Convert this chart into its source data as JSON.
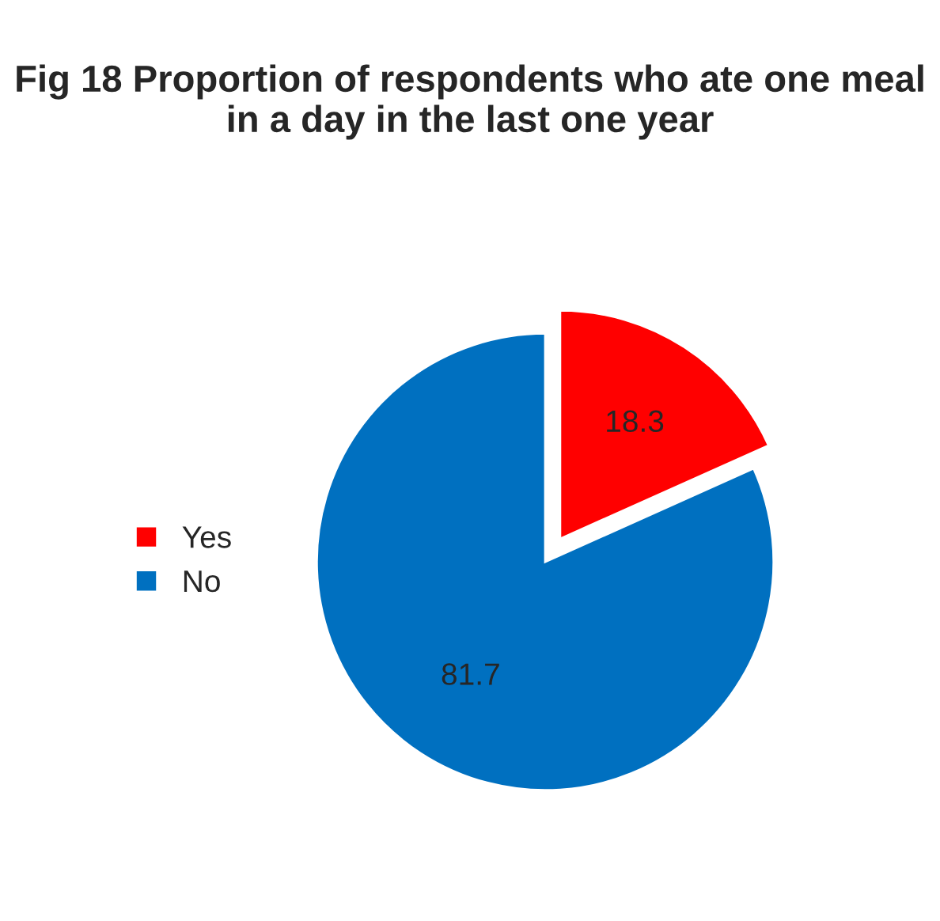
{
  "chart_data": {
    "type": "pie",
    "title": "Fig 18 Proportion of respondents who ate one meal in a day in the last one year",
    "categories": [
      "Yes",
      "No"
    ],
    "values": [
      18.3,
      81.7
    ],
    "colors": [
      "#ff0000",
      "#0070c0"
    ],
    "data_labels": true,
    "legend": "left"
  }
}
